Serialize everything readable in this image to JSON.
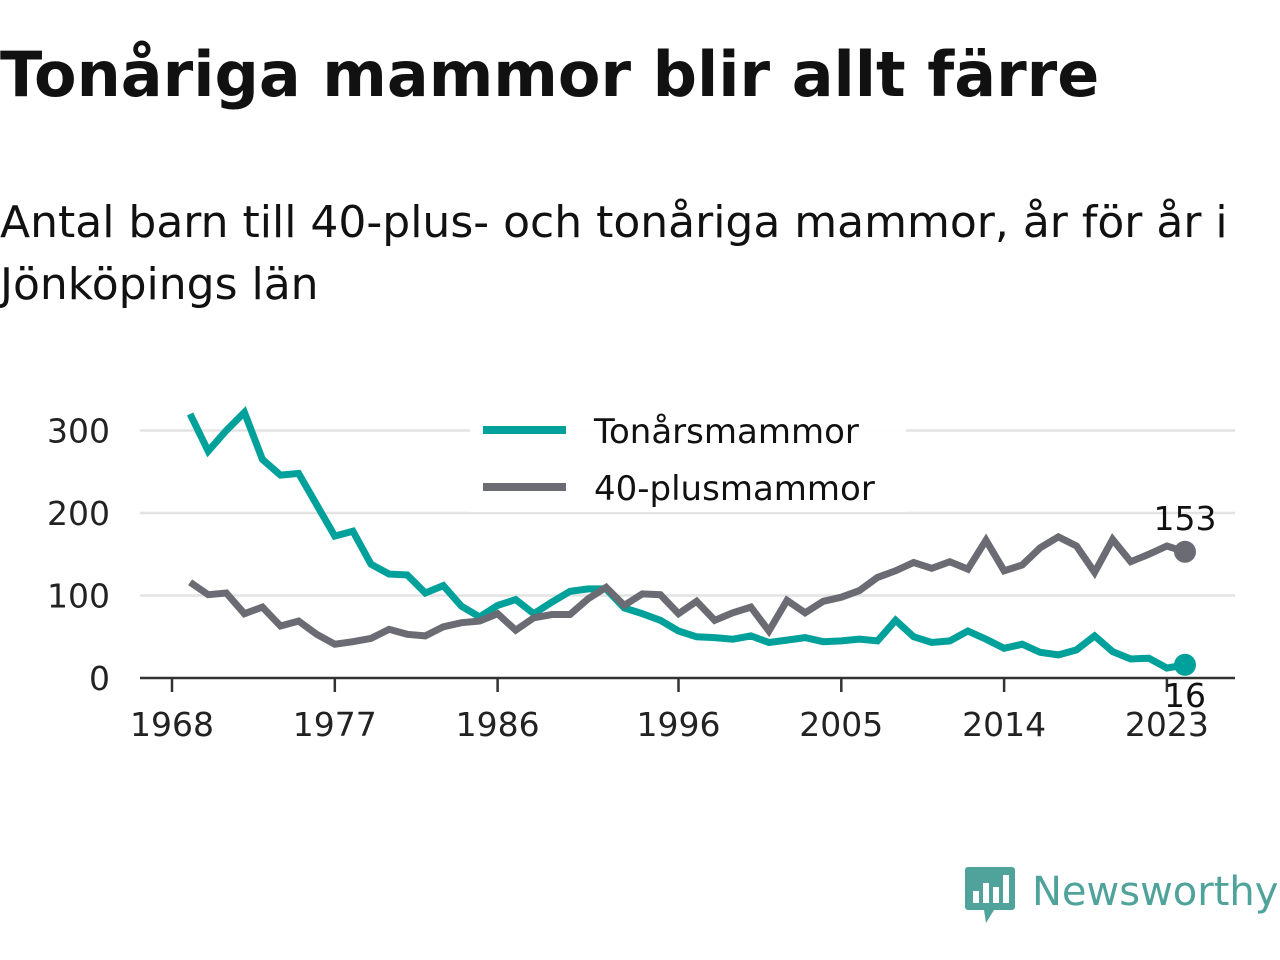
{
  "header": {
    "title": "Tonåriga mammor blir allt färre",
    "subtitle": "Antal barn till 40-plus- och tonåriga mammor, år för år i Jönköpings län"
  },
  "brand": {
    "name": "Newsworthy",
    "logo_icon": "bar-chart-speech-bubble-icon",
    "color": "#4fa39a"
  },
  "chart_data": {
    "type": "line",
    "x_ticks": [
      "1968",
      "1977",
      "1986",
      "1996",
      "2005",
      "2014",
      "2023"
    ],
    "y_ticks": [
      "0",
      "100",
      "200",
      "300"
    ],
    "ylim": [
      0,
      330
    ],
    "grid": true,
    "legend_position": "top-center",
    "series": [
      {
        "name": "Tonårsmammor",
        "color": "#00a19a",
        "end_label": "16",
        "points": [
          [
            1969,
            320
          ],
          [
            1970,
            275
          ],
          [
            1971,
            300
          ],
          [
            1972,
            322
          ],
          [
            1973,
            265
          ],
          [
            1974,
            246
          ],
          [
            1975,
            248
          ],
          [
            1976,
            210
          ],
          [
            1977,
            172
          ],
          [
            1978,
            178
          ],
          [
            1979,
            138
          ],
          [
            1980,
            126
          ],
          [
            1981,
            125
          ],
          [
            1982,
            103
          ],
          [
            1983,
            112
          ],
          [
            1984,
            87
          ],
          [
            1985,
            74
          ],
          [
            1986,
            88
          ],
          [
            1987,
            95
          ],
          [
            1988,
            78
          ],
          [
            1989,
            92
          ],
          [
            1990,
            105
          ],
          [
            1991,
            108
          ],
          [
            1992,
            108
          ],
          [
            1993,
            85
          ],
          [
            1994,
            78
          ],
          [
            1995,
            70
          ],
          [
            1996,
            57
          ],
          [
            1997,
            50
          ],
          [
            1998,
            49
          ],
          [
            1999,
            47
          ],
          [
            2000,
            51
          ],
          [
            2001,
            43
          ],
          [
            2002,
            46
          ],
          [
            2003,
            49
          ],
          [
            2004,
            44
          ],
          [
            2005,
            45
          ],
          [
            2006,
            47
          ],
          [
            2007,
            45
          ],
          [
            2008,
            70
          ],
          [
            2009,
            50
          ],
          [
            2010,
            43
          ],
          [
            2011,
            45
          ],
          [
            2012,
            57
          ],
          [
            2013,
            47
          ],
          [
            2014,
            36
          ],
          [
            2015,
            41
          ],
          [
            2016,
            31
          ],
          [
            2017,
            28
          ],
          [
            2018,
            34
          ],
          [
            2019,
            51
          ],
          [
            2020,
            32
          ],
          [
            2021,
            23
          ],
          [
            2022,
            24
          ],
          [
            2023,
            12
          ],
          [
            2024,
            16
          ]
        ]
      },
      {
        "name": "40-plusmammor",
        "color": "#6b6b73",
        "end_label": "153",
        "points": [
          [
            1969,
            116
          ],
          [
            1970,
            101
          ],
          [
            1971,
            103
          ],
          [
            1972,
            78
          ],
          [
            1973,
            86
          ],
          [
            1974,
            63
          ],
          [
            1975,
            69
          ],
          [
            1976,
            53
          ],
          [
            1977,
            41
          ],
          [
            1978,
            44
          ],
          [
            1979,
            48
          ],
          [
            1980,
            59
          ],
          [
            1981,
            53
          ],
          [
            1982,
            51
          ],
          [
            1983,
            62
          ],
          [
            1984,
            67
          ],
          [
            1985,
            69
          ],
          [
            1986,
            78
          ],
          [
            1987,
            58
          ],
          [
            1988,
            73
          ],
          [
            1989,
            77
          ],
          [
            1990,
            77
          ],
          [
            1991,
            96
          ],
          [
            1992,
            110
          ],
          [
            1993,
            88
          ],
          [
            1994,
            102
          ],
          [
            1995,
            101
          ],
          [
            1996,
            78
          ],
          [
            1997,
            93
          ],
          [
            1998,
            70
          ],
          [
            1999,
            79
          ],
          [
            2000,
            86
          ],
          [
            2001,
            57
          ],
          [
            2002,
            94
          ],
          [
            2003,
            79
          ],
          [
            2004,
            93
          ],
          [
            2005,
            98
          ],
          [
            2006,
            106
          ],
          [
            2007,
            122
          ],
          [
            2008,
            130
          ],
          [
            2009,
            140
          ],
          [
            2010,
            133
          ],
          [
            2011,
            141
          ],
          [
            2012,
            132
          ],
          [
            2013,
            167
          ],
          [
            2014,
            130
          ],
          [
            2015,
            137
          ],
          [
            2016,
            158
          ],
          [
            2017,
            171
          ],
          [
            2018,
            160
          ],
          [
            2019,
            128
          ],
          [
            2020,
            168
          ],
          [
            2021,
            141
          ],
          [
            2022,
            150
          ],
          [
            2023,
            160
          ],
          [
            2024,
            153
          ]
        ]
      }
    ]
  }
}
